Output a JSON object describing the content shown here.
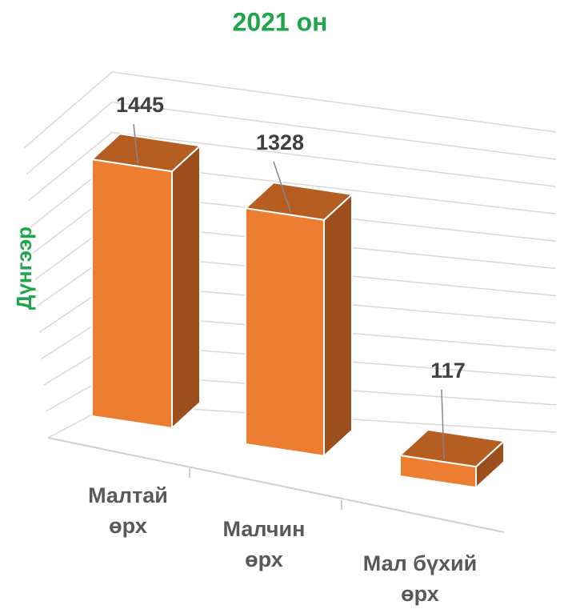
{
  "chart_data": {
    "type": "bar3d",
    "title": "2021 он",
    "y_label": "Дүнгээр",
    "categories": [
      "Малтай өрх",
      "Малчин өрх",
      "Мал бүхий өрх"
    ],
    "values": [
      1445,
      1328,
      117
    ],
    "color": "#ed7d31",
    "ylim": [
      0,
      1650
    ],
    "yticks": [
      0,
      150,
      300,
      450,
      600,
      750,
      900,
      1050,
      1200,
      1350,
      1500,
      1650
    ],
    "grid": true
  }
}
